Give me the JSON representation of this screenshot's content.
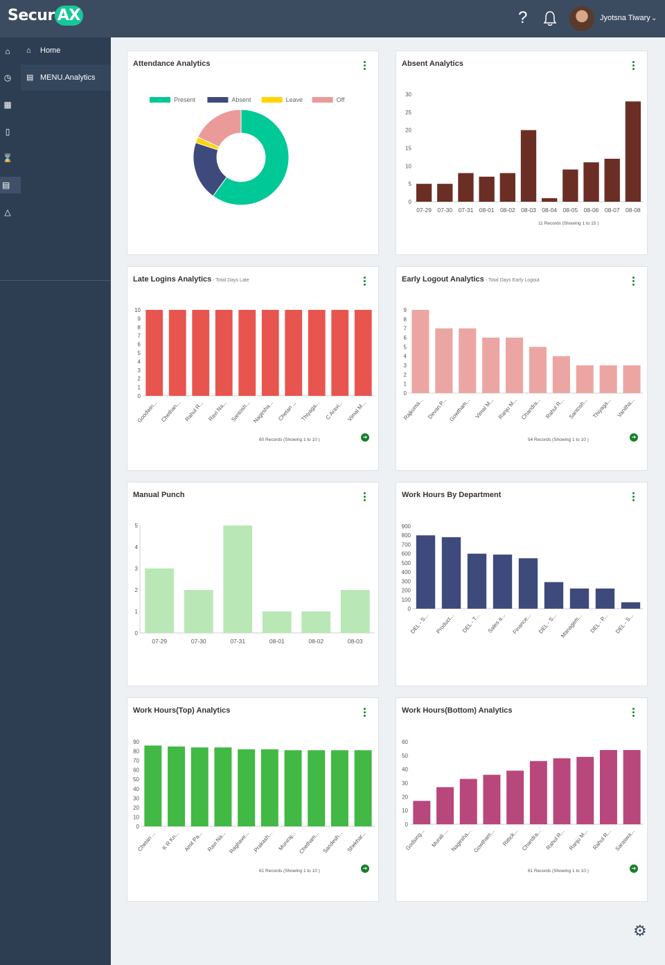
{
  "header": {
    "logo_main": "Secur",
    "logo_accent": "AX",
    "help_icon": "?",
    "user_name": "Jyotsna Tiwary"
  },
  "sidebar": {
    "icons": [
      "home-icon",
      "clock-icon",
      "calendar-icon",
      "mobile-icon",
      "hourglass-icon",
      "chart-icon",
      "bell-icon"
    ],
    "menu": [
      {
        "label": "Home"
      },
      {
        "label": "MENU.Analytics"
      }
    ]
  },
  "cards": {
    "attendance": {
      "title": "Attendance Analytics"
    },
    "absent": {
      "title": "Absent Analytics",
      "records": "11 Records (Showing 1 to 15 )"
    },
    "late": {
      "title": "Late Logins Analytics",
      "subtitle": " - Total Days Late",
      "records": "60 Records (Showing 1 to 10 )"
    },
    "early": {
      "title": "Early Logout Analytics",
      "subtitle": " - Total Days Early Logout",
      "records": "54 Records (Showing 1 to 10 )"
    },
    "manual": {
      "title": "Manual Punch"
    },
    "dept": {
      "title": "Work Hours By Department"
    },
    "top": {
      "title": "Work Hours(Top) Analytics",
      "records": "61 Records (Showing 1 to 10 )"
    },
    "bottom": {
      "title": "Work Hours(Bottom) Analytics",
      "records": "61 Records (Showing 1 to 10 )"
    }
  },
  "chart_data": [
    {
      "id": "attendance",
      "type": "pie",
      "title": "Attendance Analytics",
      "categories": [
        "Present",
        "Absent",
        "Leave",
        "Off"
      ],
      "values": [
        60,
        20,
        2,
        18
      ],
      "colors": [
        "#00c896",
        "#3e4a7c",
        "#ffd500",
        "#eb9a9a"
      ]
    },
    {
      "id": "absent",
      "type": "bar",
      "title": "Absent Analytics",
      "categories": [
        "07-29",
        "07-30",
        "07-31",
        "08-01",
        "08-02",
        "08-03",
        "08-04",
        "08-05",
        "08-06",
        "08-07",
        "08-08"
      ],
      "values": [
        5,
        5,
        8,
        7,
        8,
        20,
        1,
        9,
        11,
        12,
        28
      ],
      "ylim": [
        0,
        30
      ],
      "yticks": [
        0,
        5,
        10,
        15,
        20,
        25,
        30
      ],
      "color": "#6b2e24"
    },
    {
      "id": "late",
      "type": "bar",
      "title": "Late Logins Analytics",
      "categories": [
        "Goodwin...",
        "Chethan...",
        "Rahul R...",
        "Ravi Na...",
        "Santosh...",
        "Nagesha...",
        "Chetan ...",
        "Thiyaga...",
        "C Aravi...",
        "Vimal M..."
      ],
      "values": [
        10,
        10,
        10,
        10,
        10,
        10,
        10,
        10,
        10,
        10
      ],
      "ylim": [
        0,
        10
      ],
      "yticks": [
        0,
        1,
        2,
        3,
        4,
        5,
        6,
        7,
        8,
        9,
        10
      ],
      "color": "#e8554f"
    },
    {
      "id": "early",
      "type": "bar",
      "title": "Early Logout Analytics",
      "categories": [
        "Rajkuma...",
        "Devan.P...",
        "Gowtham...",
        "Vimal M...",
        "Ranju M...",
        "Chandra...",
        "Rahul R...",
        "Santosh...",
        "Thiyaga...",
        "Vanitha..."
      ],
      "values": [
        9,
        7,
        7,
        6,
        6,
        5,
        4,
        3,
        3,
        3
      ],
      "ylim": [
        0,
        9
      ],
      "yticks": [
        0,
        1,
        2,
        3,
        4,
        5,
        6,
        7,
        8,
        9
      ],
      "color": "#eba6a4"
    },
    {
      "id": "manual",
      "type": "bar",
      "title": "Manual Punch",
      "categories": [
        "07-29",
        "07-30",
        "07-31",
        "08-01",
        "08-02",
        "08-03"
      ],
      "values": [
        3,
        2,
        5,
        1,
        1,
        2
      ],
      "ylim": [
        0,
        5
      ],
      "yticks": [
        0,
        1,
        2,
        3,
        4,
        5
      ],
      "color": "#b9e8b6"
    },
    {
      "id": "dept",
      "type": "bar",
      "title": "Work Hours By Department",
      "categories": [
        "DEL - S...",
        "Product...",
        "DEL - T...",
        "Sales a...",
        "Finance...",
        "DEL - S...",
        "Managem...",
        "DEL - P...",
        "DEL - S..."
      ],
      "values": [
        800,
        780,
        600,
        590,
        550,
        290,
        220,
        220,
        70
      ],
      "ylim": [
        0,
        900
      ],
      "yticks": [
        0,
        100,
        200,
        300,
        400,
        500,
        600,
        700,
        800,
        900
      ],
      "color": "#3e4a7c"
    },
    {
      "id": "top",
      "type": "bar",
      "title": "Work Hours(Top) Analytics",
      "categories": [
        "Chetan ...",
        "K R Kri...",
        "Amit Pa...",
        "Ravi Na...",
        "Raghave...",
        "Prakash...",
        "Muniraj...",
        "Chetham...",
        "Sandesh...",
        "Shekhar..."
      ],
      "values": [
        86,
        85,
        84,
        84,
        82,
        82,
        81,
        81,
        81,
        81
      ],
      "ylim": [
        0,
        90
      ],
      "yticks": [
        0,
        10,
        20,
        30,
        40,
        50,
        60,
        70,
        80,
        90
      ],
      "color": "#41b944"
    },
    {
      "id": "bottom",
      "type": "bar",
      "title": "Work Hours(Bottom) Analytics",
      "categories": [
        "Godsing...",
        "Murali ...",
        "Nagesha...",
        "Gowtham...",
        "Rittick...",
        "Chandra...",
        "Rahul R...",
        "Ranju M...",
        "Rahul R...",
        "Saraswa..."
      ],
      "values": [
        17,
        27,
        33,
        36,
        39,
        46,
        48,
        49,
        54,
        54
      ],
      "ylim": [
        0,
        60
      ],
      "yticks": [
        0,
        10,
        20,
        30,
        40,
        50,
        60
      ],
      "color": "#b8477c"
    }
  ]
}
